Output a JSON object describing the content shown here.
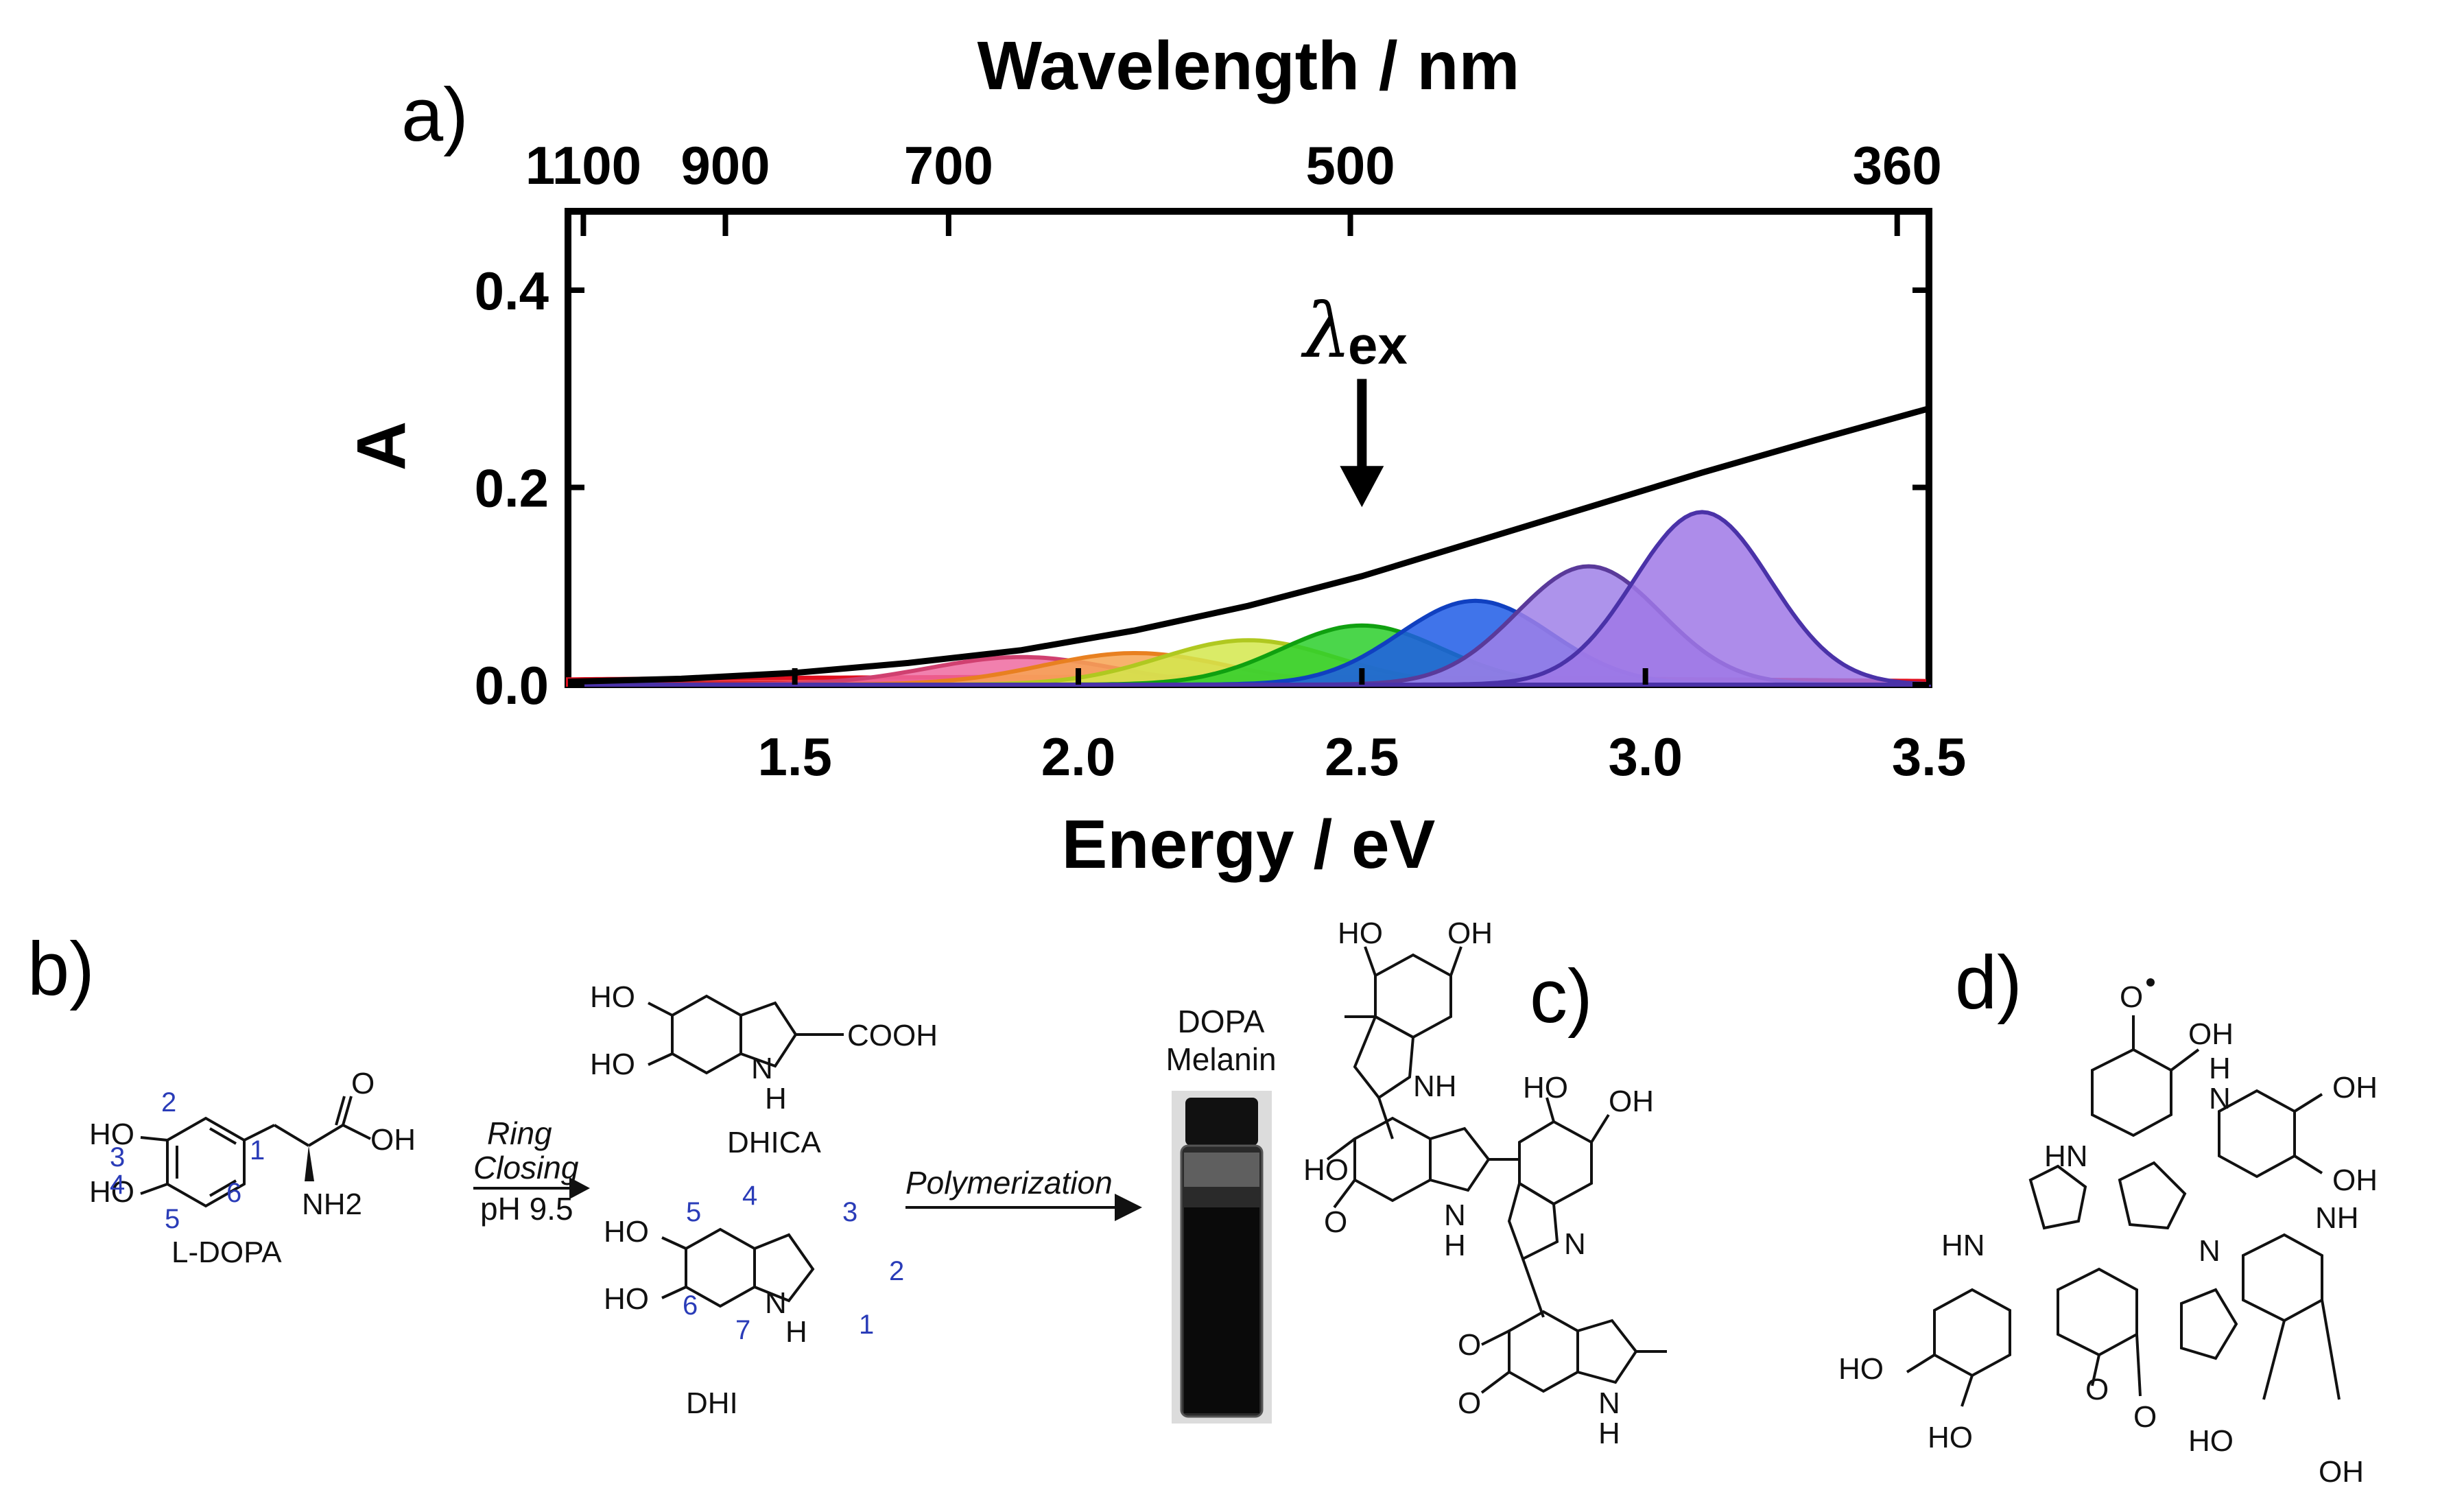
{
  "panels": {
    "a": "a)",
    "b": "b)",
    "c": "c)",
    "d": "d)"
  },
  "chart_data": {
    "type": "area",
    "top_axis_title": "Wavelength / nm",
    "top_ticks": [
      "1100",
      "900",
      "700",
      "500",
      "360"
    ],
    "top_tick_values_nm": [
      1100,
      900,
      700,
      500,
      360
    ],
    "xlabel": "Energy / eV",
    "ylabel": "A",
    "xlim": [
      1.1,
      3.5
    ],
    "ylim": [
      0,
      0.48
    ],
    "x_ticks": [
      "1.5",
      "2.0",
      "2.5",
      "3.0",
      "3.5"
    ],
    "x_tick_values": [
      1.5,
      2.0,
      2.5,
      3.0,
      3.5
    ],
    "y_ticks": [
      "0.0",
      "0.2",
      "0.4"
    ],
    "y_tick_values": [
      0.0,
      0.2,
      0.4
    ],
    "annotation": {
      "lambda": "λ",
      "sub": "ex",
      "x": 2.5,
      "y_top": 0.31,
      "y_bottom": 0.18
    },
    "absorption": {
      "name": "DOPA melanin absorbance",
      "color": "#000000",
      "x": [
        1.1,
        1.3,
        1.5,
        1.7,
        1.9,
        2.1,
        2.3,
        2.5,
        2.7,
        2.9,
        3.1,
        3.3,
        3.5
      ],
      "y": [
        0.003,
        0.006,
        0.012,
        0.022,
        0.035,
        0.055,
        0.08,
        0.11,
        0.145,
        0.18,
        0.215,
        0.248,
        0.28
      ]
    },
    "series": [
      {
        "name": "red",
        "fill": "#f0282f",
        "stroke": "#e01020",
        "center": 2.1,
        "width": 1.6,
        "height": 0.008
      },
      {
        "name": "pink",
        "fill": "#ee6aa0",
        "stroke": "#d04070",
        "center": 1.9,
        "width": 0.23,
        "height": 0.028
      },
      {
        "name": "orange",
        "fill": "#f7a552",
        "stroke": "#e88020",
        "center": 2.1,
        "width": 0.23,
        "height": 0.032
      },
      {
        "name": "yellow-green",
        "fill": "#d4e84c",
        "stroke": "#b0c820",
        "center": 2.3,
        "width": 0.22,
        "height": 0.045
      },
      {
        "name": "green",
        "fill": "#2ccf2c",
        "stroke": "#10a010",
        "center": 2.5,
        "width": 0.2,
        "height": 0.06
      },
      {
        "name": "blue",
        "fill": "#1f5ce6",
        "stroke": "#1040c0",
        "center": 2.7,
        "width": 0.19,
        "height": 0.085
      },
      {
        "name": "lilac",
        "fill": "#9f80e8",
        "stroke": "#5a3a9a",
        "center": 2.9,
        "width": 0.18,
        "height": 0.12
      },
      {
        "name": "violet",
        "fill": "#9f78e6",
        "stroke": "#4a32a8",
        "center": 3.1,
        "width": 0.17,
        "height": 0.175
      }
    ]
  },
  "scheme": {
    "ldopa": {
      "name": "L-DOPA",
      "ho_top": "HO",
      "ho_bottom": "HO",
      "oh": "OH",
      "o": "O",
      "nh2": "NH2",
      "positions": [
        "1",
        "2",
        "3",
        "4",
        "5",
        "6"
      ]
    },
    "arrow1": {
      "line1": "Ring",
      "line2": "Closing",
      "line3": "pH 9.5"
    },
    "dhica": {
      "name": "DHICA",
      "ho1": "HO",
      "ho2": "HO",
      "cooh": "COOH",
      "nh": "N",
      "h": "H"
    },
    "dhi": {
      "name": "DHI",
      "ho1": "HO",
      "ho2": "HO",
      "nh": "N",
      "h": "H",
      "positions": [
        "5",
        "4",
        "3",
        "2",
        "1",
        "6",
        "7"
      ]
    },
    "arrow2": {
      "label": "Polymerization"
    },
    "vial": {
      "line1": "DOPA",
      "line2": "Melanin"
    },
    "oligomer": {
      "ho1": "HO",
      "oh1": "OH",
      "nh1": "NH",
      "ho2": "HO",
      "o1": "O",
      "nh2": "N",
      "h2": "H",
      "ho3": "HO",
      "oh2": "OH",
      "n3": "N",
      "o2": "O",
      "o3": "O",
      "nh4": "N",
      "h4": "H"
    },
    "tetramer": {
      "radical": "O",
      "oh_tl": "OH",
      "hn1": "HN",
      "hn_top": "H",
      "n_top": "N",
      "oh_r1": "OH",
      "oh_r2": "OH",
      "hn2": "HN",
      "n_center": "N",
      "nh_r": "NH",
      "ho_bl1": "HO",
      "ho_bl2": "HO",
      "o_b1": "O",
      "o_b2": "O",
      "ho_br": "HO",
      "oh_br": "OH"
    }
  }
}
